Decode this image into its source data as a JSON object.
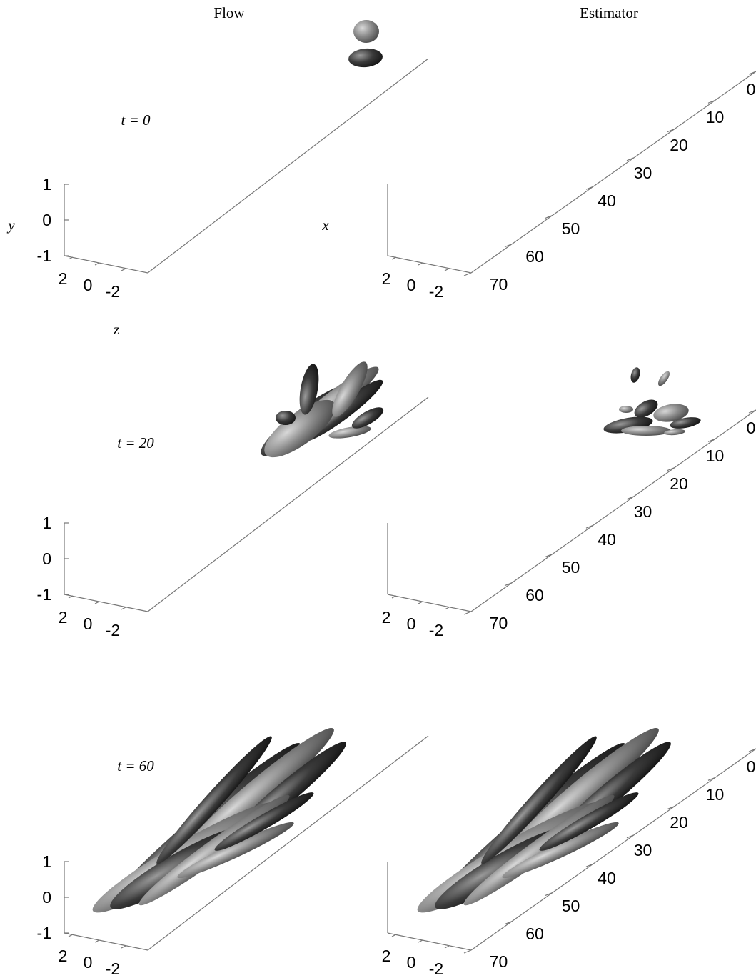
{
  "column_titles": [
    "Flow",
    "Estimator"
  ],
  "axis_labels": {
    "y": "y",
    "x": "x",
    "z": "z"
  },
  "rows": [
    {
      "time": "t = 0"
    },
    {
      "time": "t = 20"
    },
    {
      "time": "t = 60"
    }
  ],
  "y_ticks": [
    "1",
    "0",
    "-1"
  ],
  "z_ticks": [
    "2",
    "0",
    "-2"
  ],
  "x_ticks": [
    "0",
    "10",
    "20",
    "30",
    "40",
    "50",
    "60",
    "70"
  ]
}
